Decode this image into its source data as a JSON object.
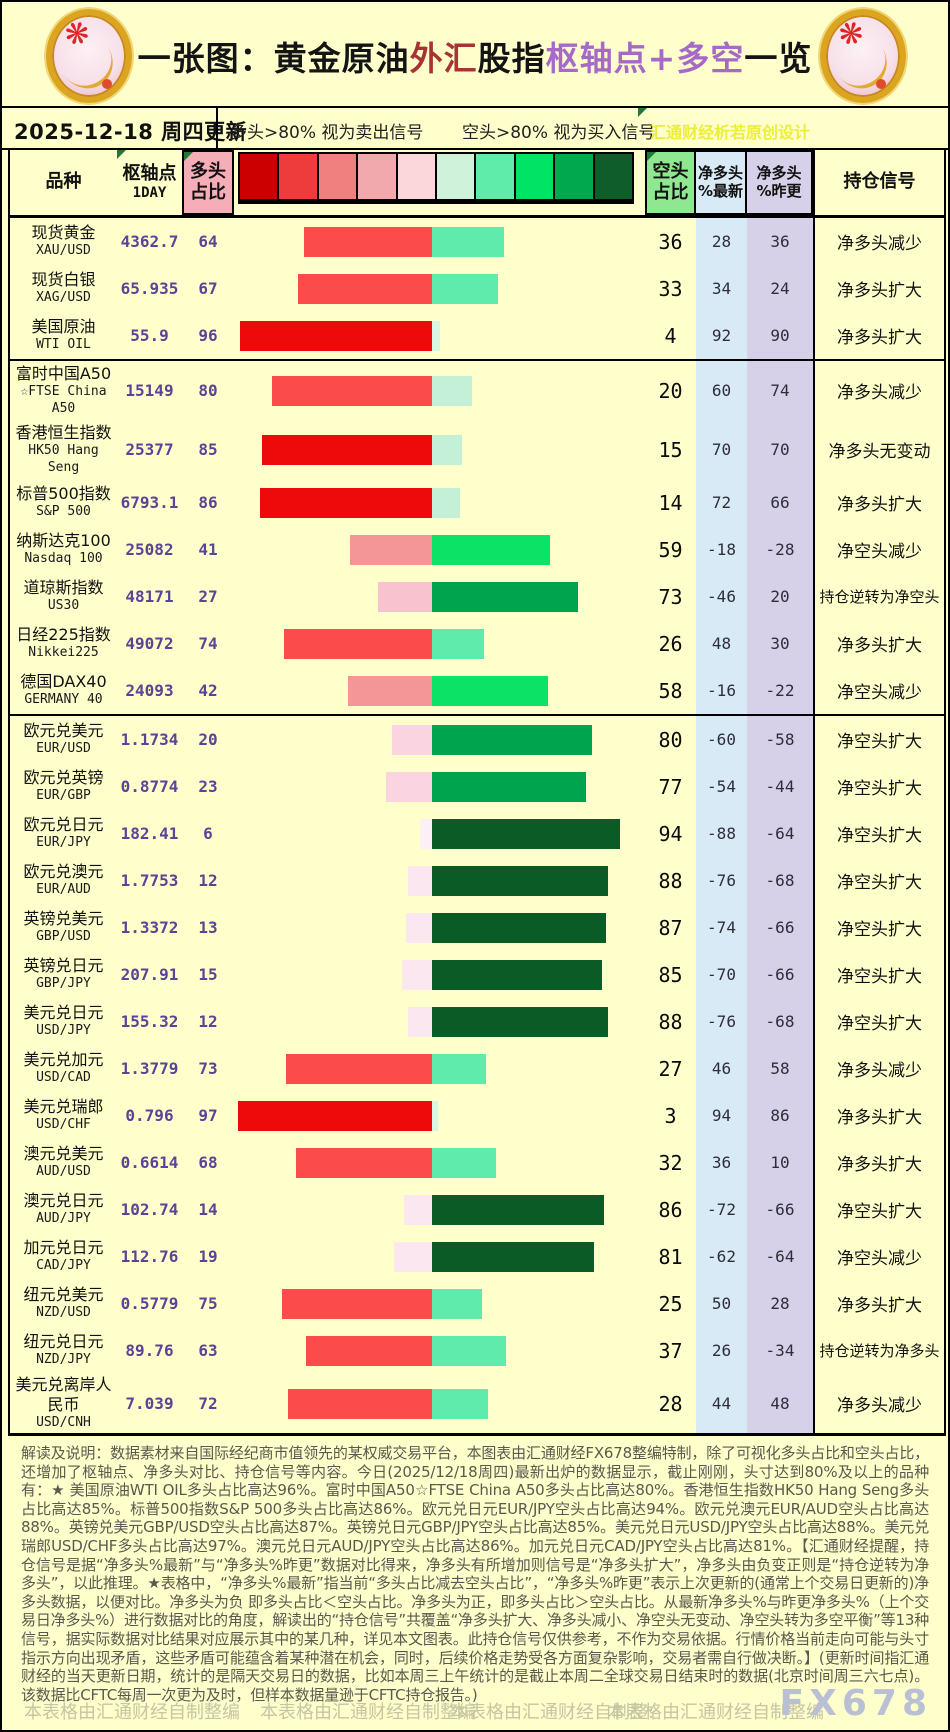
{
  "title": {
    "segments": [
      {
        "text": "一张图：黄金原油",
        "color": "#141414"
      },
      {
        "text": "外汇",
        "color": "#A63434"
      },
      {
        "text": "股指",
        "color": "#141414"
      },
      {
        "text": "枢轴点+多空",
        "color": "#A569C8"
      },
      {
        "text": "一览",
        "color": "#141414"
      }
    ]
  },
  "legend": {
    "date": "2025-12-18 周四更新",
    "long_rule": "多头>80% 视为卖出信号",
    "short_rule": "空头>80% 视为买入信号",
    "designer": "汇通财经析若原创设计"
  },
  "headers": {
    "product": "品种",
    "pivot": "枢轴点",
    "pivot_sub": "1DAY",
    "long1": "多头",
    "long2": "占比",
    "short1": "空头",
    "short2": "占比",
    "netnew1": "净多头",
    "netnew2": "%最新",
    "netprev1": "净多头",
    "netprev2": "%昨更",
    "signal": "持仓信号"
  },
  "chart_data": {
    "type": "table",
    "columns": [
      "品种",
      "枢轴点1DAY",
      "多头占比",
      "空头占比",
      "净多头%最新",
      "净多头%昨更",
      "持仓信号"
    ],
    "scale_colors": [
      "#CC0000",
      "#EE3B3B",
      "#F07F7F",
      "#F2A9AE",
      "#FBD7DC",
      "#CFF2DA",
      "#5FEBA9",
      "#00E465",
      "#00A84E",
      "#0E5D2B"
    ],
    "long_scale": [
      {
        "min": 85,
        "color": "#EE0A0A"
      },
      {
        "min": 50,
        "color": "#FB4B4B"
      },
      {
        "min": 40,
        "color": "#F49598"
      },
      {
        "min": 25,
        "color": "#F8C3CE"
      },
      {
        "min": 20,
        "color": "#FAD5E1"
      },
      {
        "min": 7,
        "color": "#FBE7F0"
      },
      {
        "min": 0,
        "color": "#FCF0F6"
      }
    ],
    "short_scale": [
      {
        "min": 81,
        "color": "#0B5B27"
      },
      {
        "min": 66,
        "color": "#00A44E"
      },
      {
        "min": 45,
        "color": "#0CE366"
      },
      {
        "min": 25,
        "color": "#5FEBAB"
      },
      {
        "min": 10,
        "color": "#C3F0D7"
      },
      {
        "min": 0,
        "color": "#D9F5E3"
      }
    ],
    "rows": [
      {
        "name_cn": "现货黄金",
        "name_en": "XAU/USD",
        "pivot": "4362.7",
        "long_pct": 64,
        "short_pct": 36,
        "net_latest": 28,
        "net_prev": 36,
        "signal": "净多头减少",
        "lines": 2,
        "group": "commodity",
        "section_start": false
      },
      {
        "name_cn": "现货白银",
        "name_en": "XAG/USD",
        "pivot": "65.935",
        "long_pct": 67,
        "short_pct": 33,
        "net_latest": 34,
        "net_prev": 24,
        "signal": "净多头扩大",
        "lines": 2,
        "group": "commodity",
        "section_start": false
      },
      {
        "name_cn": "美国原油",
        "name_en": "WTI OIL",
        "pivot": "55.9",
        "long_pct": 96,
        "short_pct": 4,
        "net_latest": 92,
        "net_prev": 90,
        "signal": "净多头扩大",
        "lines": 2,
        "group": "commodity",
        "section_start": false
      },
      {
        "name_cn": "富时中国A50",
        "name_en": "☆FTSE China A50",
        "pivot": "15149",
        "long_pct": 80,
        "short_pct": 20,
        "net_latest": 60,
        "net_prev": 74,
        "signal": "净多头减少",
        "lines": 3,
        "group": "index",
        "section_start": true
      },
      {
        "name_cn": "香港恒生指数",
        "name_en": "HK50 Hang Seng",
        "pivot": "25377",
        "long_pct": 85,
        "short_pct": 15,
        "net_latest": 70,
        "net_prev": 70,
        "signal": "净多头无变动",
        "lines": 3,
        "group": "index",
        "section_start": false
      },
      {
        "name_cn": "标普500指数",
        "name_en": "S&P 500",
        "pivot": "6793.1",
        "long_pct": 86,
        "short_pct": 14,
        "net_latest": 72,
        "net_prev": 66,
        "signal": "净多头扩大",
        "lines": 2,
        "group": "index",
        "section_start": false
      },
      {
        "name_cn": "纳斯达克100",
        "name_en": "Nasdaq 100",
        "pivot": "25082",
        "long_pct": 41,
        "short_pct": 59,
        "net_latest": -18,
        "net_prev": -28,
        "signal": "净空头减少",
        "lines": 2,
        "group": "index",
        "section_start": false
      },
      {
        "name_cn": "道琼斯指数",
        "name_en": "US30",
        "pivot": "48171",
        "long_pct": 27,
        "short_pct": 73,
        "net_latest": -46,
        "net_prev": 20,
        "signal": "持仓逆转为净空头",
        "lines": 2,
        "group": "index",
        "section_start": false
      },
      {
        "name_cn": "日经225指数",
        "name_en": "Nikkei225",
        "pivot": "49072",
        "long_pct": 74,
        "short_pct": 26,
        "net_latest": 48,
        "net_prev": 30,
        "signal": "净多头扩大",
        "lines": 2,
        "group": "index",
        "section_start": false
      },
      {
        "name_cn": "德国DAX40",
        "name_en": "GERMANY 40",
        "pivot": "24093",
        "long_pct": 42,
        "short_pct": 58,
        "net_latest": -16,
        "net_prev": -22,
        "signal": "净空头减少",
        "lines": 2,
        "group": "index",
        "section_start": false
      },
      {
        "name_cn": "欧元兑美元",
        "name_en": "EUR/USD",
        "pivot": "1.1734",
        "long_pct": 20,
        "short_pct": 80,
        "net_latest": -60,
        "net_prev": -58,
        "signal": "净空头扩大",
        "lines": 2,
        "group": "forex",
        "section_start": true
      },
      {
        "name_cn": "欧元兑英镑",
        "name_en": "EUR/GBP",
        "pivot": "0.8774",
        "long_pct": 23,
        "short_pct": 77,
        "net_latest": -54,
        "net_prev": -44,
        "signal": "净空头扩大",
        "lines": 2,
        "group": "forex",
        "section_start": false
      },
      {
        "name_cn": "欧元兑日元",
        "name_en": "EUR/JPY",
        "pivot": "182.41",
        "long_pct": 6,
        "short_pct": 94,
        "net_latest": -88,
        "net_prev": -64,
        "signal": "净空头扩大",
        "lines": 2,
        "group": "forex",
        "section_start": false
      },
      {
        "name_cn": "欧元兑澳元",
        "name_en": "EUR/AUD",
        "pivot": "1.7753",
        "long_pct": 12,
        "short_pct": 88,
        "net_latest": -76,
        "net_prev": -68,
        "signal": "净空头扩大",
        "lines": 2,
        "group": "forex",
        "section_start": false
      },
      {
        "name_cn": "英镑兑美元",
        "name_en": "GBP/USD",
        "pivot": "1.3372",
        "long_pct": 13,
        "short_pct": 87,
        "net_latest": -74,
        "net_prev": -66,
        "signal": "净空头扩大",
        "lines": 2,
        "group": "forex",
        "section_start": false
      },
      {
        "name_cn": "英镑兑日元",
        "name_en": "GBP/JPY",
        "pivot": "207.91",
        "long_pct": 15,
        "short_pct": 85,
        "net_latest": -70,
        "net_prev": -66,
        "signal": "净空头扩大",
        "lines": 2,
        "group": "forex",
        "section_start": false
      },
      {
        "name_cn": "美元兑日元",
        "name_en": "USD/JPY",
        "pivot": "155.32",
        "long_pct": 12,
        "short_pct": 88,
        "net_latest": -76,
        "net_prev": -68,
        "signal": "净空头扩大",
        "lines": 2,
        "group": "forex",
        "section_start": false
      },
      {
        "name_cn": "美元兑加元",
        "name_en": "USD/CAD",
        "pivot": "1.3779",
        "long_pct": 73,
        "short_pct": 27,
        "net_latest": 46,
        "net_prev": 58,
        "signal": "净多头减少",
        "lines": 2,
        "group": "forex",
        "section_start": false
      },
      {
        "name_cn": "美元兑瑞郎",
        "name_en": "USD/CHF",
        "pivot": "0.796",
        "long_pct": 97,
        "short_pct": 3,
        "net_latest": 94,
        "net_prev": 86,
        "signal": "净多头扩大",
        "lines": 2,
        "group": "forex",
        "section_start": false
      },
      {
        "name_cn": "澳元兑美元",
        "name_en": "AUD/USD",
        "pivot": "0.6614",
        "long_pct": 68,
        "short_pct": 32,
        "net_latest": 36,
        "net_prev": 10,
        "signal": "净多头扩大",
        "lines": 2,
        "group": "forex",
        "section_start": false
      },
      {
        "name_cn": "澳元兑日元",
        "name_en": "AUD/JPY",
        "pivot": "102.74",
        "long_pct": 14,
        "short_pct": 86,
        "net_latest": -72,
        "net_prev": -66,
        "signal": "净空头扩大",
        "lines": 2,
        "group": "forex",
        "section_start": false
      },
      {
        "name_cn": "加元兑日元",
        "name_en": "CAD/JPY",
        "pivot": "112.76",
        "long_pct": 19,
        "short_pct": 81,
        "net_latest": -62,
        "net_prev": -64,
        "signal": "净空头减少",
        "lines": 2,
        "group": "forex",
        "section_start": false
      },
      {
        "name_cn": "纽元兑美元",
        "name_en": "NZD/USD",
        "pivot": "0.5779",
        "long_pct": 75,
        "short_pct": 25,
        "net_latest": 50,
        "net_prev": 28,
        "signal": "净多头扩大",
        "lines": 2,
        "group": "forex",
        "section_start": false
      },
      {
        "name_cn": "纽元兑日元",
        "name_en": "NZD/JPY",
        "pivot": "89.76",
        "long_pct": 63,
        "short_pct": 37,
        "net_latest": 26,
        "net_prev": -34,
        "signal": "持仓逆转为净多头",
        "lines": 2,
        "group": "forex",
        "section_start": false
      },
      {
        "name_cn": "美元兑离岸人民币",
        "name_en": "USD/CNH",
        "pivot": "7.039",
        "long_pct": 72,
        "short_pct": 28,
        "net_latest": 44,
        "net_prev": 48,
        "signal": "净多头减少",
        "lines": 3,
        "group": "forex",
        "section_start": false
      }
    ]
  },
  "notes": {
    "text": "解读及说明：数据素材来自国际经纪商市值领先的某权威交易平台，本图表由汇通财经FX678整编特制，除了可视化多头占比和空头占比，还增加了枢轴点、净多头对比、持仓信号等内容。今日(2025/12/18周四)最新出炉的数据显示，截止刚刚，头寸达到80%及以上的品种有：★ 美国原油WTI OIL多头占比高达96%。富时中国A50☆FTSE China A50多头占比高达80%。香港恒生指数HK50 Hang Seng多头占比高达85%。标普500指数S&P 500多头占比高达86%。欧元兑日元EUR/JPY空头占比高达94%。欧元兑澳元EUR/AUD空头占比高达88%。英镑兑美元GBP/USD空头占比高达87%。英镑兑日元GBP/JPY空头占比高达85%。美元兑日元USD/JPY空头占比高达88%。美元兑瑞郎USD/CHF多头占比高达97%。澳元兑日元AUD/JPY空头占比高达86%。加元兑日元CAD/JPY空头占比高达81%。【汇通财经提醒，持仓信号是据“净多头%最新”与“净多头%昨更”数据对比得来，净多头有所增加则信号是“净多头扩大”，净多头由负变正则是“持仓逆转为净多头”，以此推理。★表格中，“净多头%最新”指当前“多头占比减去空头占比”，“净多头%昨更”表示上次更新的(通常上个交易日更新的)净多头数据，以便对比。净多头为负 即多头占比＜空头占比。净多头为正，即多头占比＞空头占比。从最新净多头%与昨更净多头%（上个交易日净多头%）进行数据对比的角度，解读出的“持仓信号”共覆盖“净多头扩大、净多头减小、净空头无变动、净空头转为多空平衡”等13种信号，据实际数据对比结果对应展示其中的某几种，详见本文图表。此持仓信号仅供参考，不作为交易依据。行情价格当前走向可能与头寸指示方向出现矛盾，这些矛盾可能蕴含着某种潜在机会，同时，后续价格走势受各方面复杂影响，交易者需自行做决断。】(更新时间指汇通财经的当天更新日期，统计的是隔天交易日的数据，比如本周三上午统计的是截止本周二全球交易日结束时的数据(北京时间周三六七点)。该数据比CFTC每周一次更为及时，但样本数据量逊于CFTC持仓报告。)"
  },
  "footer": {
    "credits": [
      "本表格由汇通财经自制整编",
      "本表格由汇通财经自制整编",
      "本表格由汇通财经自制整:",
      "本表格由汇通财经自制整编"
    ],
    "watermark": "FX678"
  }
}
